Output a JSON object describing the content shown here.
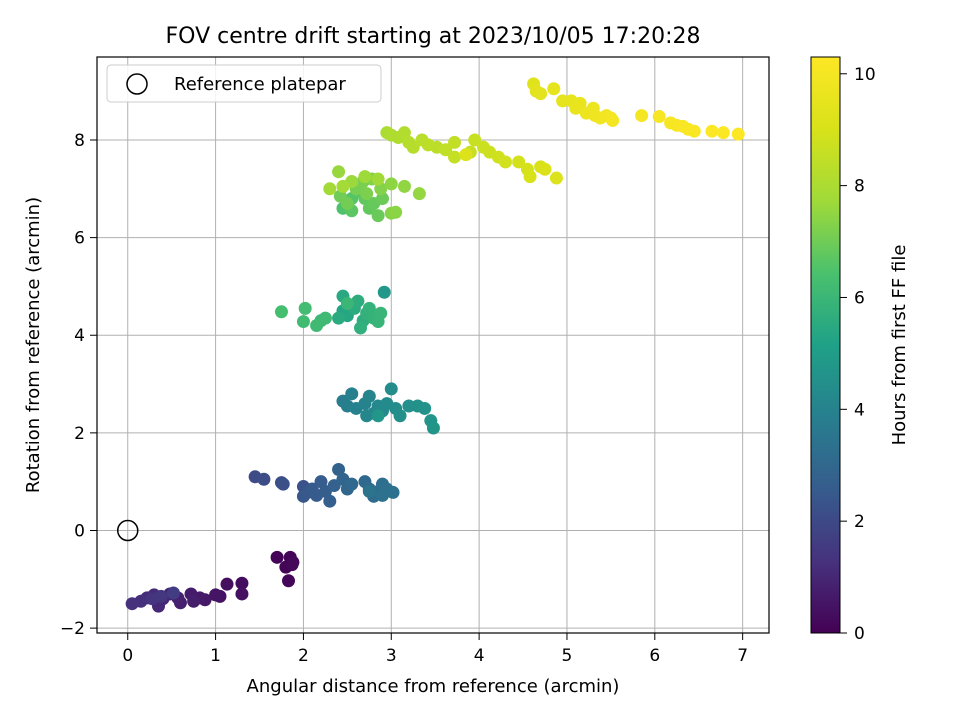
{
  "chart_data": {
    "type": "scatter",
    "title": "FOV centre drift starting at 2023/10/05 17:20:28",
    "xlabel": "Angular distance from reference (arcmin)",
    "ylabel": "Rotation from reference (arcmin)",
    "xlim": [
      -0.35,
      7.3
    ],
    "ylim": [
      -2.1,
      9.7
    ],
    "xticks": [
      0,
      1,
      2,
      3,
      4,
      5,
      6,
      7
    ],
    "yticks": [
      -2,
      0,
      2,
      4,
      6,
      8
    ],
    "grid": true,
    "legend": {
      "position": "top-left",
      "entries": [
        "Reference platepar"
      ]
    },
    "reference_point": {
      "x": 0,
      "y": 0,
      "label": "Reference platepar"
    },
    "colorbar": {
      "label": "Hours from first FF file",
      "range": [
        0,
        10.3
      ],
      "ticks": [
        0,
        2,
        4,
        6,
        8,
        10
      ],
      "colormap": "viridis"
    },
    "points": [
      [
        1.7,
        -0.55,
        0.05
      ],
      [
        1.85,
        -0.55,
        0.08
      ],
      [
        1.8,
        -0.75,
        0.1
      ],
      [
        1.87,
        -0.7,
        0.12
      ],
      [
        1.83,
        -1.03,
        0.14
      ],
      [
        1.88,
        -0.65,
        0.16
      ],
      [
        1.3,
        -1.08,
        0.3
      ],
      [
        1.13,
        -1.1,
        0.35
      ],
      [
        1.3,
        -1.3,
        0.4
      ],
      [
        1.05,
        -1.35,
        0.45
      ],
      [
        1.0,
        -1.32,
        0.5
      ],
      [
        0.88,
        -1.42,
        0.6
      ],
      [
        0.82,
        -1.38,
        0.65
      ],
      [
        0.72,
        -1.3,
        0.7
      ],
      [
        0.75,
        -1.45,
        0.75
      ],
      [
        0.6,
        -1.48,
        0.8
      ],
      [
        0.57,
        -1.38,
        0.85
      ],
      [
        0.48,
        -1.3,
        0.9
      ],
      [
        0.4,
        -1.4,
        1.0
      ],
      [
        0.35,
        -1.55,
        1.05
      ],
      [
        0.3,
        -1.32,
        1.1
      ],
      [
        0.22,
        -1.38,
        1.15
      ],
      [
        0.15,
        -1.45,
        1.2
      ],
      [
        0.05,
        -1.5,
        1.25
      ],
      [
        0.28,
        -1.4,
        1.35
      ],
      [
        0.38,
        -1.35,
        1.45
      ],
      [
        0.52,
        -1.28,
        1.6
      ],
      [
        1.45,
        1.1,
        2.05
      ],
      [
        1.55,
        1.05,
        2.1
      ],
      [
        1.75,
        0.98,
        2.15
      ],
      [
        1.77,
        0.95,
        2.2
      ],
      [
        2.0,
        0.9,
        2.3
      ],
      [
        2.05,
        0.78,
        2.4
      ],
      [
        2.0,
        0.7,
        2.45
      ],
      [
        2.1,
        0.85,
        2.5
      ],
      [
        2.15,
        0.72,
        2.55
      ],
      [
        2.2,
        1.0,
        2.6
      ],
      [
        2.25,
        0.8,
        2.65
      ],
      [
        2.3,
        0.6,
        2.7
      ],
      [
        2.35,
        0.92,
        2.75
      ],
      [
        2.4,
        1.25,
        2.85
      ],
      [
        2.45,
        1.05,
        2.9
      ],
      [
        2.5,
        0.85,
        2.95
      ],
      [
        2.55,
        0.95,
        3.0
      ],
      [
        2.7,
        1.0,
        3.05
      ],
      [
        2.75,
        0.85,
        3.1
      ],
      [
        2.8,
        0.7,
        3.15
      ],
      [
        2.85,
        0.8,
        3.2
      ],
      [
        2.9,
        0.95,
        3.25
      ],
      [
        2.95,
        0.85,
        3.3
      ],
      [
        3.02,
        0.78,
        3.35
      ],
      [
        2.9,
        0.72,
        3.4
      ],
      [
        2.75,
        0.8,
        3.45
      ],
      [
        2.45,
        2.65,
        3.8
      ],
      [
        2.5,
        2.55,
        3.85
      ],
      [
        2.55,
        2.8,
        3.9
      ],
      [
        2.6,
        2.5,
        3.95
      ],
      [
        2.7,
        2.6,
        4.0
      ],
      [
        2.75,
        2.75,
        4.05
      ],
      [
        2.8,
        2.4,
        4.1
      ],
      [
        2.72,
        2.35,
        4.15
      ],
      [
        2.85,
        2.55,
        4.2
      ],
      [
        2.9,
        2.45,
        4.25
      ],
      [
        2.95,
        2.6,
        4.3
      ],
      [
        3.0,
        2.9,
        4.35
      ],
      [
        3.05,
        2.5,
        4.4
      ],
      [
        3.1,
        2.35,
        4.45
      ],
      [
        3.2,
        2.55,
        4.5
      ],
      [
        3.3,
        2.55,
        4.55
      ],
      [
        3.38,
        2.5,
        4.6
      ],
      [
        3.45,
        2.25,
        4.65
      ],
      [
        3.48,
        2.1,
        4.7
      ],
      [
        2.85,
        2.35,
        4.75
      ],
      [
        2.92,
        4.88,
        4.8
      ],
      [
        2.45,
        4.5,
        5.3
      ],
      [
        2.5,
        4.4,
        5.35
      ],
      [
        2.55,
        4.6,
        5.4
      ],
      [
        2.45,
        4.8,
        5.45
      ],
      [
        2.4,
        4.35,
        5.5
      ],
      [
        2.58,
        4.55,
        5.55
      ],
      [
        2.62,
        4.7,
        5.6
      ],
      [
        2.68,
        4.3,
        5.65
      ],
      [
        2.65,
        4.15,
        5.7
      ],
      [
        2.72,
        4.45,
        5.75
      ],
      [
        2.75,
        4.55,
        5.8
      ],
      [
        2.8,
        4.35,
        5.85
      ],
      [
        2.85,
        4.28,
        5.9
      ],
      [
        2.88,
        4.45,
        5.95
      ],
      [
        2.5,
        4.65,
        6.0
      ],
      [
        2.2,
        4.3,
        6.05
      ],
      [
        2.25,
        4.35,
        6.1
      ],
      [
        2.15,
        4.2,
        6.15
      ],
      [
        2.0,
        4.28,
        6.2
      ],
      [
        2.02,
        4.55,
        6.25
      ],
      [
        1.75,
        4.48,
        6.3
      ],
      [
        2.45,
        6.6,
        6.5
      ],
      [
        2.55,
        6.8,
        6.6
      ],
      [
        2.62,
        6.95,
        6.65
      ],
      [
        2.55,
        6.55,
        6.7
      ],
      [
        2.7,
        6.8,
        6.75
      ],
      [
        2.75,
        6.6,
        6.8
      ],
      [
        2.8,
        6.7,
        6.85
      ],
      [
        2.85,
        6.45,
        6.9
      ],
      [
        2.9,
        6.8,
        6.95
      ],
      [
        2.42,
        6.85,
        7.0
      ],
      [
        2.5,
        6.7,
        7.05
      ],
      [
        2.6,
        7.0,
        7.1
      ],
      [
        2.68,
        7.15,
        7.15
      ],
      [
        2.72,
        6.9,
        7.2
      ],
      [
        2.78,
        7.2,
        7.25
      ],
      [
        2.88,
        7.0,
        7.3
      ],
      [
        3.0,
        6.5,
        7.35
      ],
      [
        3.05,
        6.52,
        7.4
      ],
      [
        3.0,
        7.1,
        7.45
      ],
      [
        3.15,
        7.05,
        7.5
      ],
      [
        3.32,
        6.9,
        7.55
      ],
      [
        2.4,
        7.35,
        7.6
      ],
      [
        2.55,
        7.15,
        7.65
      ],
      [
        2.7,
        7.25,
        7.7
      ],
      [
        2.85,
        7.2,
        7.75
      ],
      [
        2.3,
        7.0,
        7.8
      ],
      [
        2.45,
        7.05,
        7.85
      ],
      [
        2.95,
        8.15,
        8.0
      ],
      [
        3.0,
        8.1,
        8.05
      ],
      [
        3.08,
        8.05,
        8.1
      ],
      [
        3.15,
        8.15,
        8.15
      ],
      [
        3.2,
        7.95,
        8.2
      ],
      [
        3.25,
        7.85,
        8.25
      ],
      [
        3.35,
        8.0,
        8.3
      ],
      [
        3.42,
        7.9,
        8.35
      ],
      [
        3.52,
        7.85,
        8.4
      ],
      [
        3.62,
        7.8,
        8.45
      ],
      [
        3.72,
        7.95,
        8.5
      ],
      [
        3.72,
        7.65,
        8.55
      ],
      [
        3.9,
        7.75,
        8.6
      ],
      [
        3.95,
        8.0,
        8.65
      ],
      [
        4.05,
        7.85,
        8.7
      ],
      [
        4.12,
        7.75,
        8.75
      ],
      [
        4.22,
        7.65,
        8.8
      ],
      [
        4.3,
        7.55,
        8.85
      ],
      [
        4.45,
        7.55,
        8.9
      ],
      [
        4.55,
        7.4,
        8.95
      ],
      [
        4.58,
        7.25,
        9.0
      ],
      [
        4.7,
        7.45,
        9.05
      ],
      [
        4.75,
        7.4,
        9.1
      ],
      [
        4.88,
        7.22,
        9.15
      ],
      [
        3.85,
        7.7,
        9.2
      ],
      [
        4.62,
        9.15,
        9.3
      ],
      [
        4.65,
        9.0,
        9.35
      ],
      [
        4.7,
        8.95,
        9.4
      ],
      [
        4.85,
        9.05,
        9.45
      ],
      [
        4.95,
        8.8,
        9.5
      ],
      [
        5.05,
        8.8,
        9.55
      ],
      [
        5.1,
        8.65,
        9.6
      ],
      [
        5.15,
        8.75,
        9.65
      ],
      [
        5.22,
        8.55,
        9.7
      ],
      [
        5.3,
        8.65,
        9.75
      ],
      [
        5.32,
        8.5,
        9.8
      ],
      [
        5.38,
        8.45,
        9.85
      ],
      [
        5.45,
        8.5,
        9.9
      ],
      [
        5.5,
        8.45,
        9.95
      ],
      [
        5.52,
        8.4,
        9.98
      ],
      [
        5.85,
        8.5,
        10.0
      ],
      [
        6.05,
        8.48,
        10.05
      ],
      [
        6.18,
        8.35,
        10.1
      ],
      [
        6.25,
        8.3,
        10.12
      ],
      [
        6.32,
        8.28,
        10.15
      ],
      [
        6.38,
        8.22,
        10.18
      ],
      [
        6.45,
        8.18,
        10.2
      ],
      [
        6.65,
        8.18,
        10.22
      ],
      [
        6.78,
        8.15,
        10.25
      ],
      [
        6.95,
        8.12,
        10.28
      ]
    ]
  }
}
